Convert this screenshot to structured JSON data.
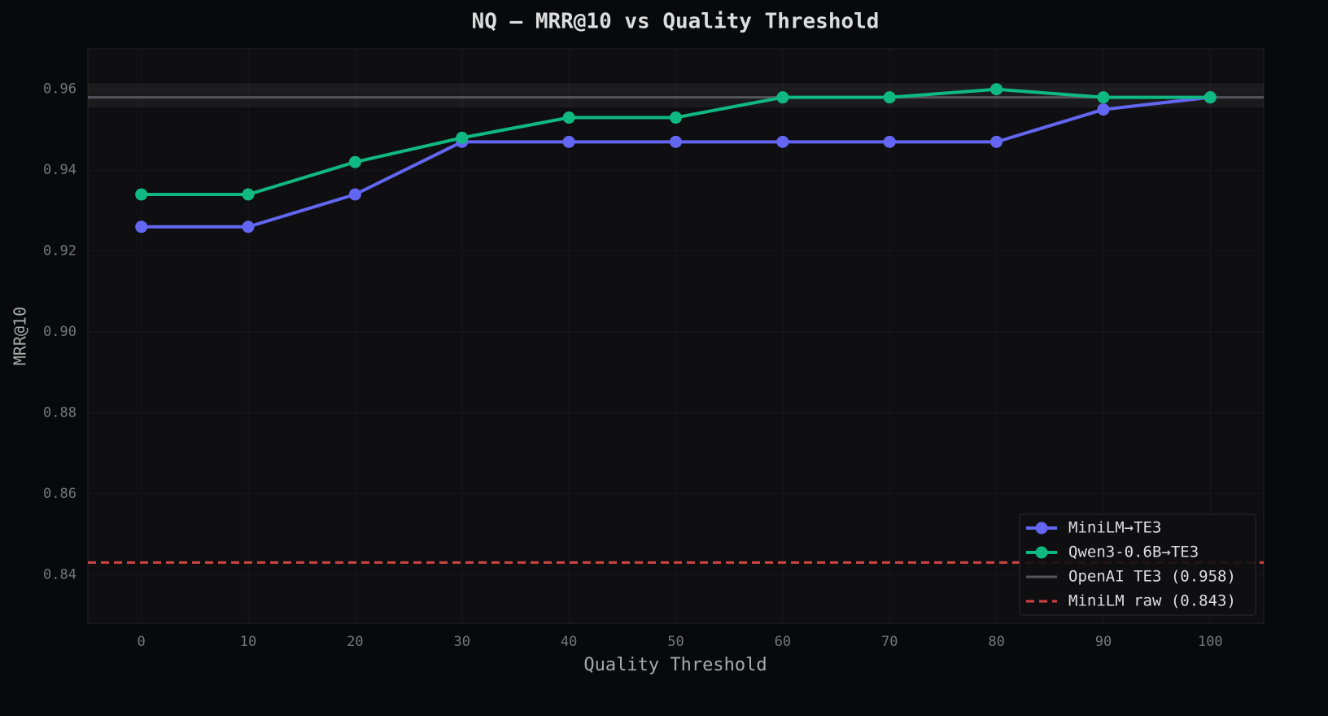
{
  "chart_data": {
    "type": "line",
    "title": "NQ — MRR@10 vs Quality Threshold",
    "x_label": "Quality Threshold",
    "y_label": "MRR@10",
    "x": [
      0,
      10,
      20,
      30,
      40,
      50,
      60,
      70,
      80,
      90,
      100
    ],
    "series": [
      {
        "name": "MiniLM→TE3",
        "color": "#6366f1",
        "values": [
          0.926,
          0.926,
          0.934,
          0.947,
          0.947,
          0.947,
          0.947,
          0.947,
          0.947,
          0.955,
          0.958
        ]
      },
      {
        "name": "Qwen3-0.6B→TE3",
        "color": "#10b981",
        "values": [
          0.934,
          0.934,
          0.942,
          0.948,
          0.953,
          0.953,
          0.958,
          0.958,
          0.96,
          0.958,
          0.958
        ]
      }
    ],
    "reference_lines": [
      {
        "name": "OpenAI TE3 (0.958)",
        "value": 0.958,
        "color": "#55555c",
        "dashed": false,
        "band": [
          0.9555,
          0.9615
        ]
      },
      {
        "name": "MiniLM raw (0.843)",
        "value": 0.843,
        "color": "#d04444",
        "dashed": true
      }
    ],
    "xlim": [
      -5,
      105
    ],
    "ylim": [
      0.828,
      0.97
    ],
    "xticks": [
      0,
      10,
      20,
      30,
      40,
      50,
      60,
      70,
      80,
      90,
      100
    ],
    "yticks": [
      0.84,
      0.86,
      0.88,
      {
        "value": 0.9,
        "label": "0.90"
      },
      0.92,
      0.94,
      0.96
    ],
    "grid": true,
    "legend": "lower right"
  }
}
